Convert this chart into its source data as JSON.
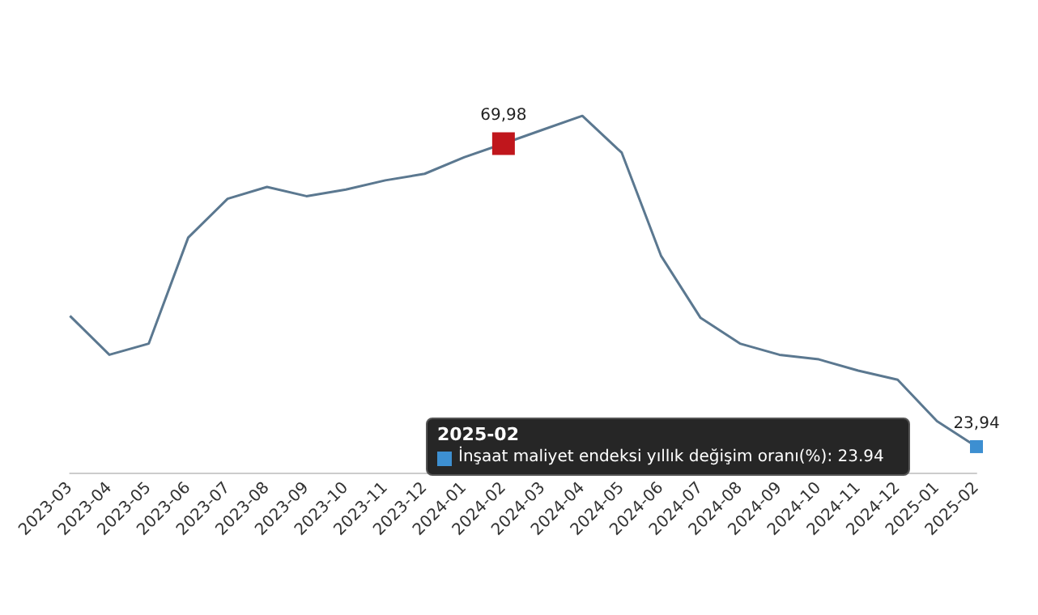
{
  "chart_data": {
    "type": "line",
    "categories": [
      "2023-03",
      "2023-04",
      "2023-05",
      "2023-06",
      "2023-07",
      "2023-08",
      "2023-09",
      "2023-10",
      "2023-11",
      "2023-12",
      "2024-01",
      "2024-02",
      "2024-03",
      "2024-04",
      "2024-05",
      "2024-06",
      "2024-07",
      "2024-08",
      "2024-09",
      "2024-10",
      "2024-11",
      "2024-12",
      "2025-01",
      "2025-02"
    ],
    "series": [
      {
        "color": "#5b7890",
        "values": [
          43.8,
          37.9,
          39.6,
          55.7,
          61.6,
          63.4,
          62.0,
          63.0,
          64.4,
          65.4,
          67.9,
          69.98,
          72.1,
          74.2,
          68.6,
          52.9,
          43.5,
          39.6,
          37.9,
          37.2,
          35.5,
          34.1,
          27.8,
          23.94
        ],
        "value_labels": [
          null,
          null,
          null,
          null,
          null,
          null,
          null,
          null,
          null,
          null,
          null,
          "69,98",
          null,
          null,
          null,
          null,
          null,
          null,
          null,
          null,
          null,
          null,
          null,
          "23,94"
        ],
        "colors": [
          "#5b7890",
          "#5b7890",
          "#5b7890",
          "#5b7890",
          "#5b7890",
          "#5b7890",
          "#5b7890",
          "#5b7890",
          "#5b7890",
          "#5b7890",
          "#5b7890",
          "#c0161c",
          "#5b7890",
          "#5b7890",
          "#5b7890",
          "#5b7890",
          "#5b7890",
          "#5b7890",
          "#5b7890",
          "#5b7890",
          "#5b7890",
          "#5b7890",
          "#5b7890",
          "#3d8fd1"
        ]
      }
    ],
    "annotations": [
      "2025-02",
      "İnşaat maliyet endeksi yıllık değişim oranı(%): 23.94"
    ],
    "grid": false
  }
}
